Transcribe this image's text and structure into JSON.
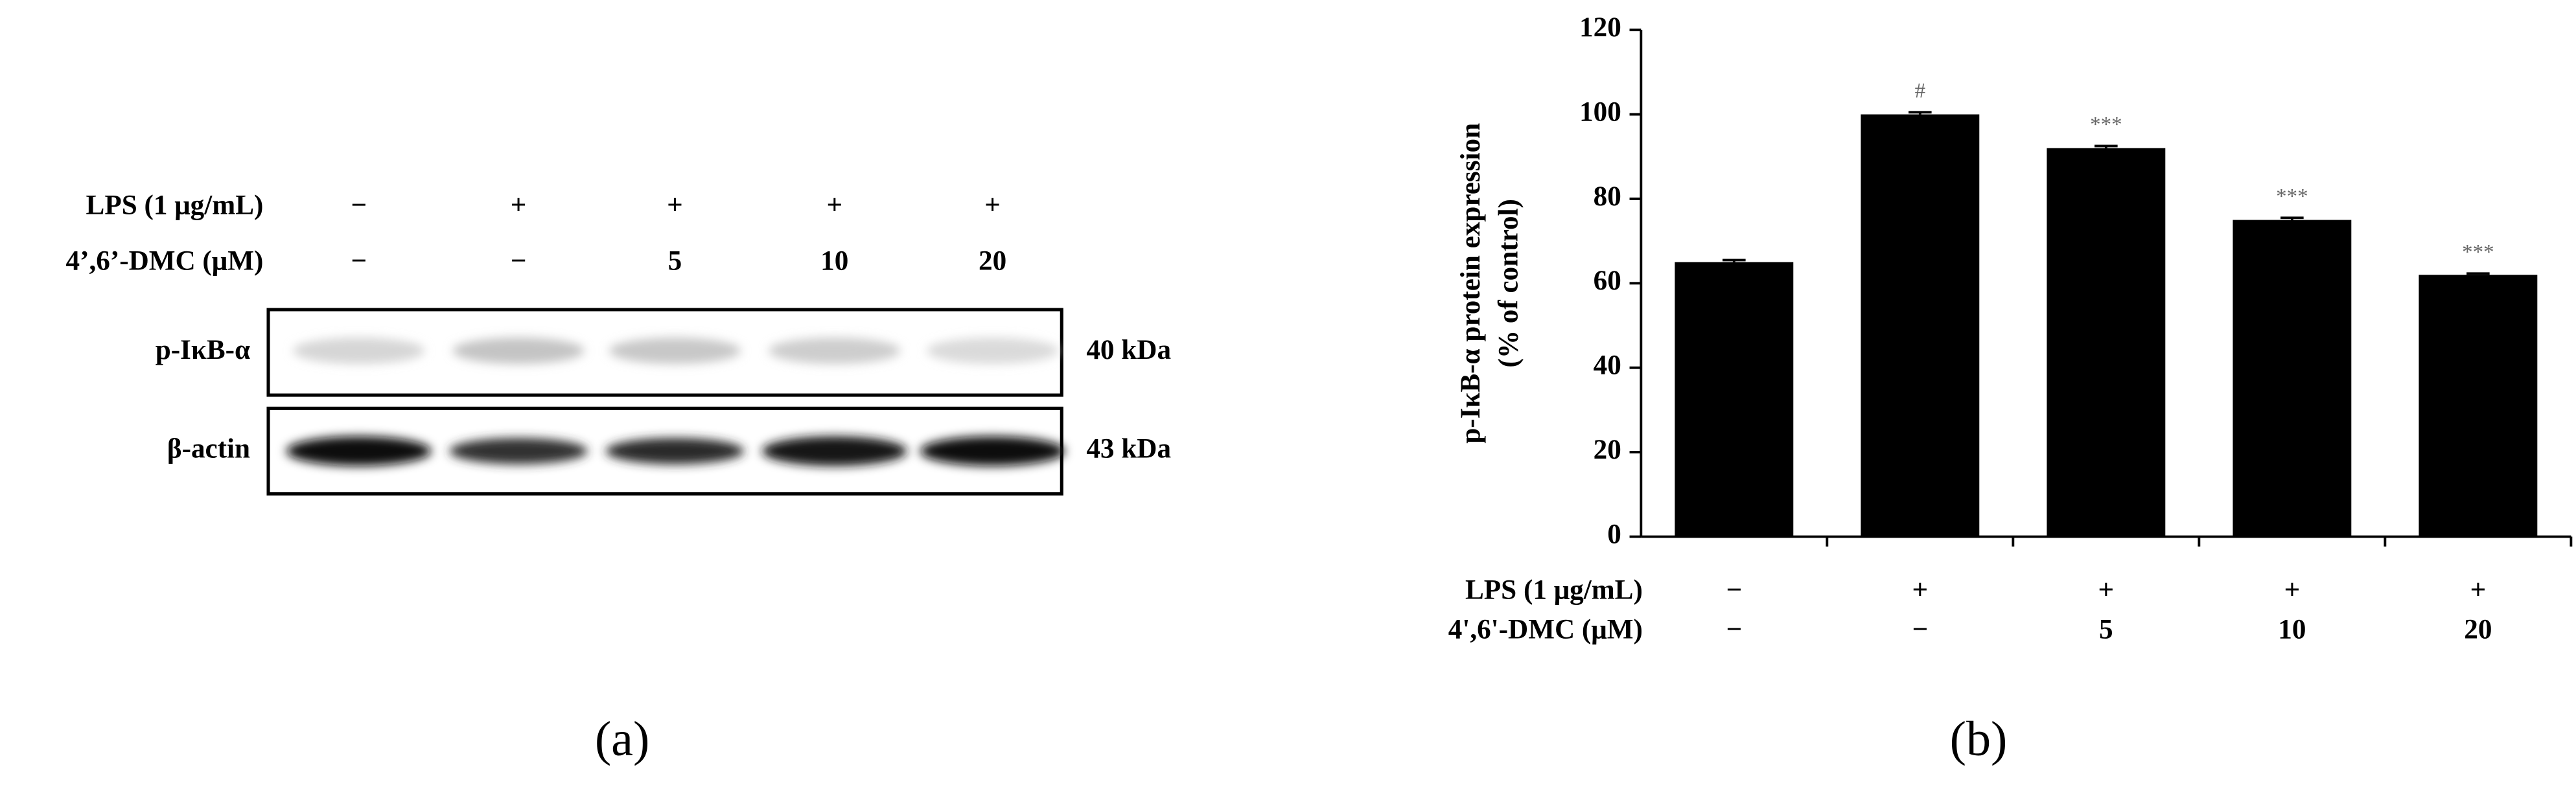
{
  "blot": {
    "rows": [
      {
        "label": "LPS (1 μg/mL)",
        "values": [
          "−",
          "+",
          "+",
          "+",
          "+"
        ]
      },
      {
        "label": "4’,6’-DMC (μM)",
        "values": [
          "−",
          "−",
          "5",
          "10",
          "20"
        ]
      }
    ],
    "bands": [
      {
        "label": "p-IκB-α",
        "size": "40 kDa"
      },
      {
        "label": "β-actin",
        "size": "43 kDa"
      }
    ],
    "panel_label": "(a)"
  },
  "chart_data": {
    "type": "bar",
    "y_label": [
      "p-IκB-α protein expression",
      "(% of control)"
    ],
    "category_rows": [
      {
        "label": "LPS (1 μg/mL)",
        "values": [
          "−",
          "+",
          "+",
          "+",
          "+"
        ]
      },
      {
        "label": "4',6'-DMC (μM)",
        "values": [
          "−",
          "−",
          "5",
          "10",
          "20"
        ]
      }
    ],
    "values": [
      65,
      100,
      92,
      75,
      62
    ],
    "errors": [
      0.5,
      0.5,
      0.5,
      0.5,
      0.3
    ],
    "value_annotations": [
      null,
      "#",
      "***",
      "***",
      "***"
    ],
    "color": "#000000",
    "ylim": [
      0,
      120
    ],
    "yticks": [
      0,
      20,
      40,
      60,
      80,
      100,
      120
    ],
    "panel_label": "(b)"
  }
}
